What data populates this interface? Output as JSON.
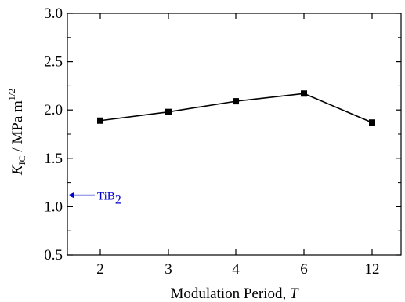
{
  "chart_data": {
    "type": "line",
    "xlabel": "Modulation Period, ",
    "xlabel_var": "T",
    "ylabel_var": "K",
    "ylabel_sub": "IC",
    "ylabel_unit": " / MPa m",
    "ylabel_sup": "1/2",
    "categories": [
      "2",
      "3",
      "4",
      "6",
      "12"
    ],
    "series": [
      {
        "values": [
          1.89,
          1.98,
          2.09,
          2.17,
          1.87
        ]
      }
    ],
    "ylim": [
      0.5,
      3.0
    ],
    "yticks": [
      "0.5",
      "1.0",
      "1.5",
      "2.0",
      "2.5",
      "3.0"
    ],
    "annotation": {
      "text": "TiB",
      "subscript": "2",
      "y": 1.12,
      "color": "#0000cc"
    },
    "grid": false,
    "legend": "none"
  }
}
